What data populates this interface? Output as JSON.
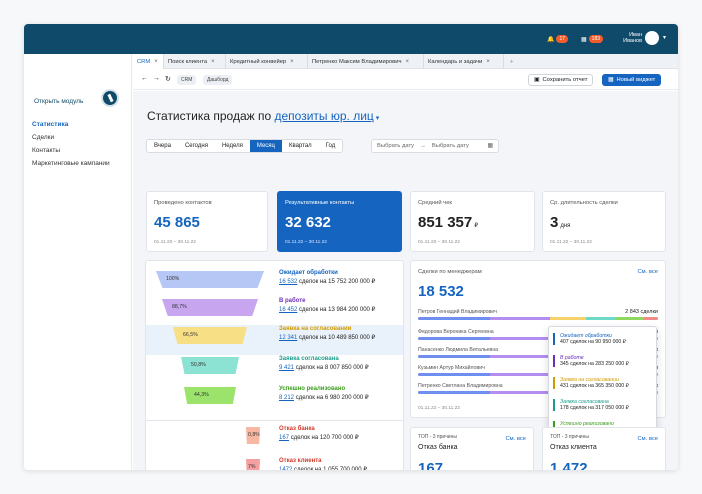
{
  "header": {
    "notif1": "17",
    "notif2": "183",
    "user_first": "Иван",
    "user_last": "Иванов"
  },
  "sidebar": {
    "module": "Открыть модуль",
    "items": [
      "Статистика",
      "Сделки",
      "Контакты",
      "Маркетинговые кампании"
    ]
  },
  "tabs": [
    "CRM",
    "Поиск клиента",
    "Кредитный конвейер",
    "Петренко Максим Владимирович",
    "Календарь и задачи"
  ],
  "toolbar": {
    "crumb1": "CRM",
    "crumb2": "Дашборд",
    "save": "Сохранить отчет",
    "new_widget": "Новый виджет"
  },
  "page": {
    "title_prefix": "Статистика продаж по",
    "title_link": "депозиты юр. лиц",
    "date_from": "Выбрать дату",
    "date_to": "Выбрать дату"
  },
  "periods": [
    "Вчера",
    "Сегодня",
    "Неделя",
    "Месяц",
    "Квартал",
    "Год"
  ],
  "cards": [
    {
      "title": "Проведено контактов",
      "value": "45 865",
      "date": "01.11.22 – 30.11.22"
    },
    {
      "title": "Результативные контакты",
      "value": "32 632",
      "date": "01.11.22 – 30.11.22"
    },
    {
      "title": "Средний чек",
      "value": "851 357",
      "unit": "₽",
      "date": "01.11.22 – 30.11.22"
    },
    {
      "title": "Ср. длительность сделки",
      "value": "3",
      "unit": "дня",
      "date": "01.11.22 – 30.11.22"
    }
  ],
  "funnel": [
    {
      "pct": "100%",
      "label": "Ожидает обработки",
      "count": "16 532",
      "rest": "сделок на 15 752 200 000 ₽",
      "color": "#b7c7f5",
      "labelColor": "#1565c0"
    },
    {
      "pct": "88,7%",
      "label": "В работе",
      "count": "16 452",
      "rest": "сделок на 13 984 200 000 ₽",
      "color": "#c7a6ef",
      "labelColor": "#6a2fb8"
    },
    {
      "pct": "66,5%",
      "label": "Заявка на согласовании",
      "count": "12 341",
      "rest": "сделок на 10 489 850 000 ₽",
      "color": "#f7df86",
      "labelColor": "#d19a00"
    },
    {
      "pct": "50,8%",
      "label": "Заявка согласована",
      "count": "9 421",
      "rest": "сделок на 8 007 850 000 ₽",
      "color": "#8ce3d3",
      "labelColor": "#1b9c8a"
    },
    {
      "pct": "44,3%",
      "label": "Успешно реализовано",
      "count": "8 212",
      "rest": "сделок на 6 980 200 000 ₽",
      "color": "#9be36b",
      "labelColor": "#3a9c1b"
    },
    {
      "pct": "0,8%",
      "label": "Отказ банка",
      "count": "167",
      "rest": "сделок на 120 700 000 ₽",
      "color": "#f7b7a3",
      "labelColor": "#d03a2a"
    },
    {
      "pct": "7%",
      "label": "Отказ клиента",
      "count": "1472",
      "rest": "сделок на 1 055 700 000 ₽",
      "color": "#f5a0a0",
      "labelColor": "#d03a2a"
    }
  ],
  "managers": {
    "title": "Сделки по менеджерам",
    "total": "18 532",
    "see_all": "См. все",
    "date": "01.11.22 – 30.11.22",
    "rows": [
      {
        "name": "Петров Геннадий Владимирович",
        "val": "2 843 сделки"
      },
      {
        "name": "Федорова Вероника Сергеевна",
        "val": "2 752 сделки"
      },
      {
        "name": "Панасенко Людмила Витальевна",
        "val": "2 529 сделок"
      },
      {
        "name": "Кузьмин Артур Михайлович",
        "val": "1 503 сделки"
      },
      {
        "name": "Петренко Светлана Владимировна",
        "val": "1 469 сделок"
      }
    ]
  },
  "popup": [
    {
      "name": "Ожидает обработки",
      "val": "407 сделок на 90 950 000 ₽",
      "color": "#1565c0"
    },
    {
      "name": "В работе",
      "val": "345 сделок на 283 250 000 ₽",
      "color": "#6a2fb8"
    },
    {
      "name": "Заявка на согласовании",
      "val": "431 сделок на 365 350 000 ₽",
      "color": "#d19a00"
    },
    {
      "name": "Заявка согласована",
      "val": "178 сделок на 317 050 000 ₽",
      "color": "#1b9c8a"
    },
    {
      "name": "Успешно реализовано",
      "val": "95 сделок на 90 950 000 ₽",
      "color": "#3a9c1b"
    },
    {
      "name": "Отказ клиента",
      "val": "13 сделок на 28 900 000 ₽",
      "color": "#d03a2a"
    }
  ],
  "top3": [
    {
      "sub": "ТОП - 3 причины",
      "title": "Отказ банка",
      "value": "167",
      "see_all": "См. все"
    },
    {
      "sub": "ТОП - 3 причины",
      "title": "Отказ клиента",
      "value": "1 472",
      "see_all": "См. все"
    }
  ]
}
